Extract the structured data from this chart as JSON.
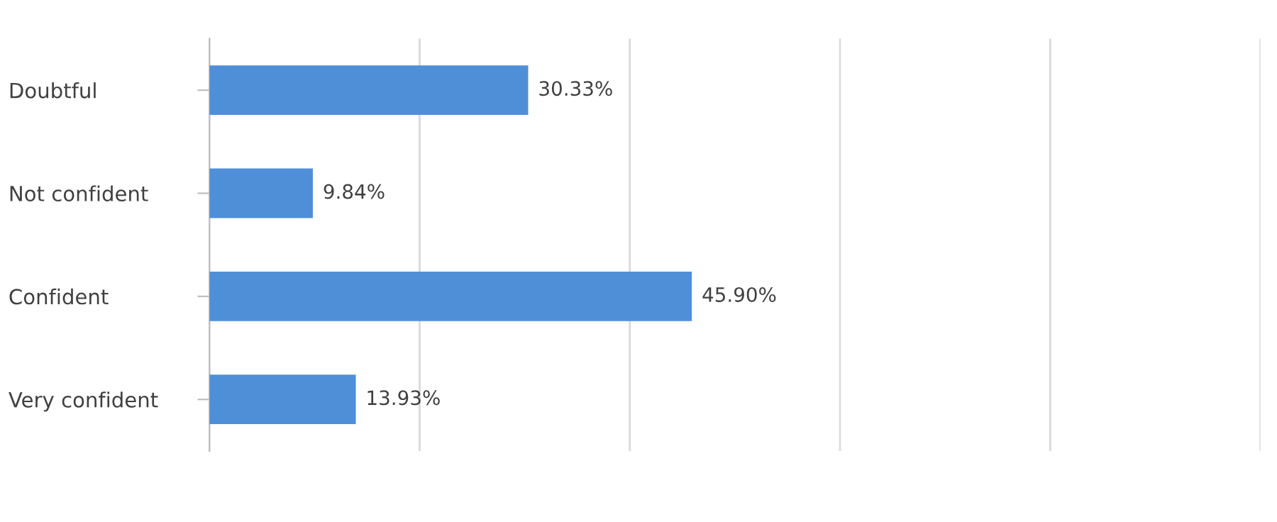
{
  "chart_data": {
    "type": "bar",
    "orientation": "horizontal",
    "categories": [
      "Doubtful",
      "Not confident",
      "Confident",
      "Very confident"
    ],
    "values": [
      30.33,
      9.84,
      45.9,
      13.93
    ],
    "value_labels": [
      "30.33%",
      "9.84%",
      "45.90%",
      "13.93%"
    ],
    "color": "#4f8fd8",
    "xlim": [
      0,
      100
    ],
    "xticks": [
      {
        "value": 0,
        "label": null
      },
      {
        "value": 20,
        "label": null
      },
      {
        "value": 40,
        "label": null
      },
      {
        "value": 60,
        "label": null
      },
      {
        "value": 80,
        "label": null
      },
      {
        "value": 100,
        "label": null
      }
    ],
    "grid": "x",
    "tick_labels": "y",
    "legend": false
  }
}
